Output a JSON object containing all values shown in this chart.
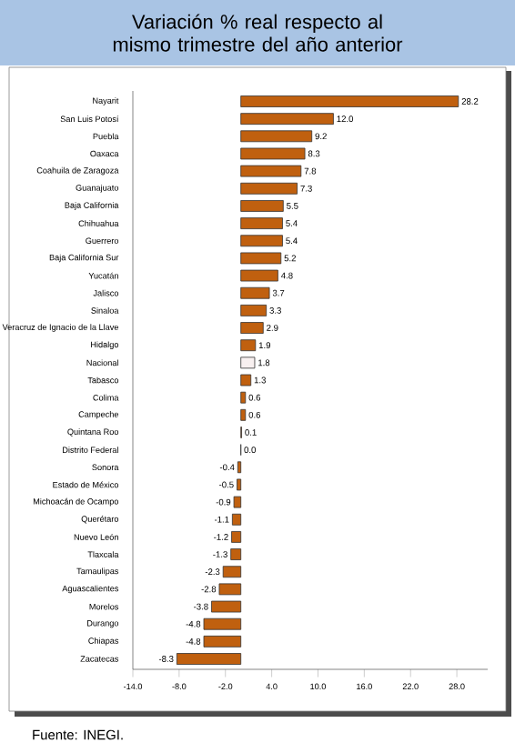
{
  "chart_data": {
    "type": "bar",
    "orientation": "horizontal",
    "title": "Variación % real respecto al mismo trimestre del año anterior",
    "categories": [
      "Nayarit",
      "San Luis Potosí",
      "Puebla",
      "Oaxaca",
      "Coahuila de Zaragoza",
      "Guanajuato",
      "Baja California",
      "Chihuahua",
      "Guerrero",
      "Baja California Sur",
      "Yucatán",
      "Jalisco",
      "Sinaloa",
      "Veracruz de Ignacio de la Llave",
      "Hidalgo",
      "Nacional",
      "Tabasco",
      "Colima",
      "Campeche",
      "Quintana Roo",
      "Distrito Federal",
      "Sonora",
      "Estado de México",
      "Michoacán de Ocampo",
      "Querétaro",
      "Nuevo León",
      "Tlaxcala",
      "Tamaulipas",
      "Aguascalientes",
      "Morelos",
      "Durango",
      "Chiapas",
      "Zacatecas"
    ],
    "values": [
      28.2,
      12.0,
      9.2,
      8.3,
      7.8,
      7.3,
      5.5,
      5.4,
      5.4,
      5.2,
      4.8,
      3.7,
      3.3,
      2.9,
      1.9,
      1.8,
      1.3,
      0.6,
      0.6,
      0.1,
      0.0,
      -0.4,
      -0.5,
      -0.9,
      -1.1,
      -1.2,
      -1.3,
      -2.3,
      -2.8,
      -3.8,
      -4.8,
      -4.8,
      -8.3
    ],
    "colors": [
      "#c0600f",
      "#c0600f",
      "#c0600f",
      "#c0600f",
      "#c0600f",
      "#c0600f",
      "#c0600f",
      "#c0600f",
      "#c0600f",
      "#c0600f",
      "#c0600f",
      "#c0600f",
      "#c0600f",
      "#c0600f",
      "#c0600f",
      "#f8f0f0",
      "#c0600f",
      "#c0600f",
      "#c0600f",
      "#c0600f",
      "#c0600f",
      "#c0600f",
      "#c0600f",
      "#c0600f",
      "#c0600f",
      "#c0600f",
      "#c0600f",
      "#c0600f",
      "#c0600f",
      "#c0600f",
      "#c0600f",
      "#c0600f",
      "#c0600f"
    ],
    "xlim": [
      -14,
      32
    ],
    "xticks": [
      {
        "value": -14,
        "label": "-14.0"
      },
      {
        "value": -8,
        "label": "-8.0"
      },
      {
        "value": -2,
        "label": "-2.0"
      },
      {
        "value": 4,
        "label": "4.0"
      },
      {
        "value": 10,
        "label": "10.0"
      },
      {
        "value": 16,
        "label": "16.0"
      },
      {
        "value": 22,
        "label": "22.0"
      },
      {
        "value": 28,
        "label": "28.0"
      }
    ],
    "value_labels": [
      "28.2",
      "12.0",
      "9.2",
      "8.3",
      "7.8",
      "7.3",
      "5.5",
      "5.4",
      "5.4",
      "5.2",
      "4.8",
      "3.7",
      "3.3",
      "2.9",
      "1.9",
      "1.8",
      "1.3",
      "0.6",
      "0.6",
      "0.1",
      "0.0",
      "-0.4",
      "-0.5",
      "-0.9",
      "-1.1",
      "-1.2",
      "-1.3",
      "-2.3",
      "-2.8",
      "-3.8",
      "-4.8",
      "-4.8",
      "-8.3"
    ],
    "annotations": [
      "Fuente: INEGI."
    ]
  }
}
